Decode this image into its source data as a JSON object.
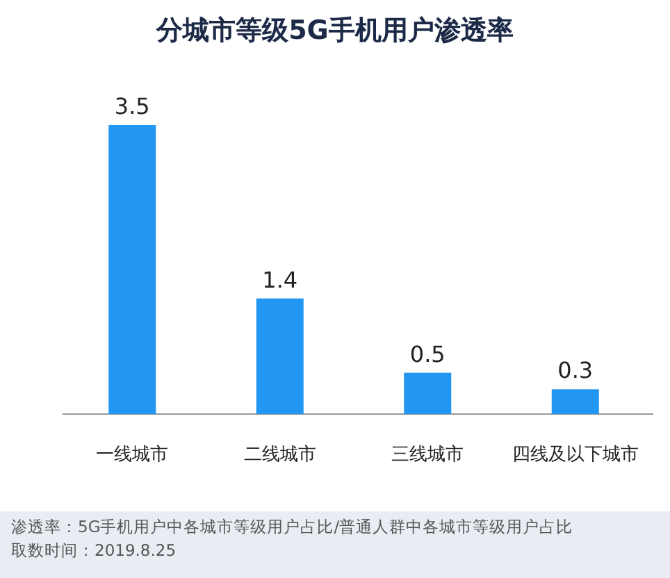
{
  "chart_data": {
    "type": "bar",
    "title": "分城市等级5G手机用户渗透率",
    "categories": [
      "一线城市",
      "二线城市",
      "三线城市",
      "四线及以下城市"
    ],
    "values": [
      3.5,
      1.4,
      0.5,
      0.3
    ],
    "color": "#2196f3",
    "data_labels": true,
    "annotations": [
      "渗透率：5G手机用户中各城市等级用户占比/普通人群中各城市等级用户占比",
      "取数时间：2019.8.25"
    ]
  }
}
